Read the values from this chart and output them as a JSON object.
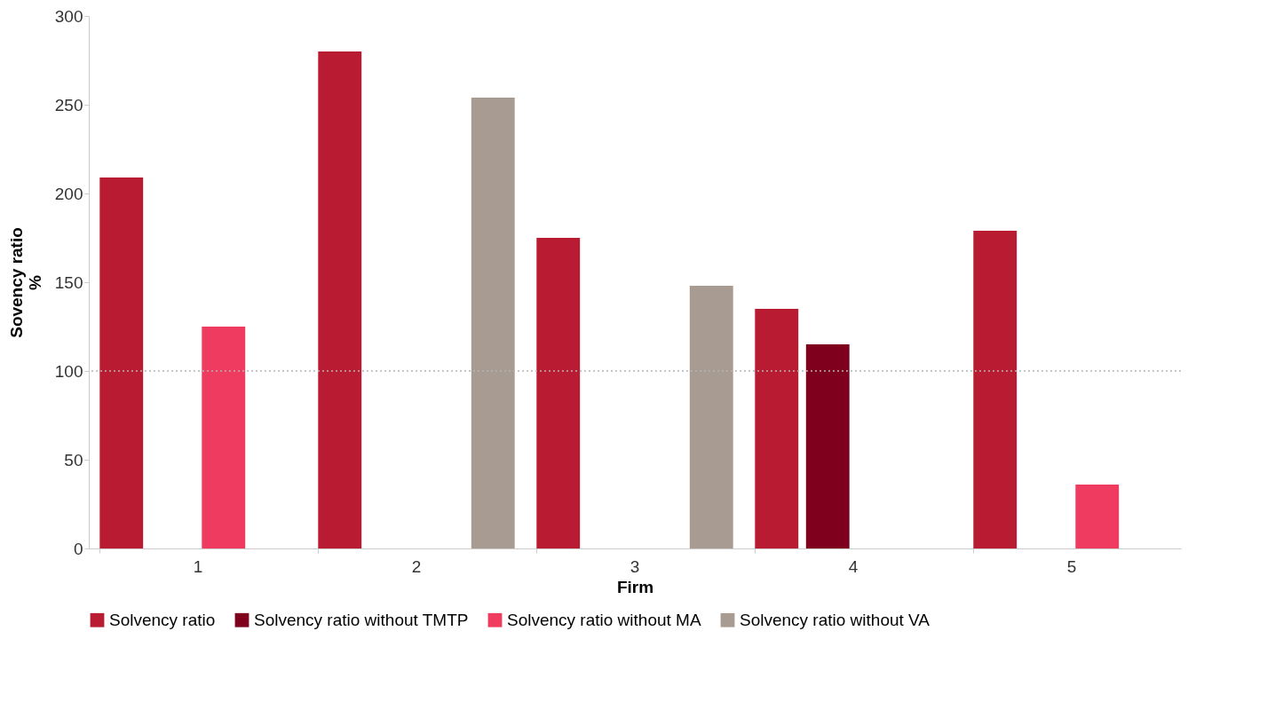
{
  "chart_data": {
    "type": "bar",
    "xlabel": "Firm",
    "ylabel": "Sovency ratio\n%",
    "categories": [
      "1",
      "2",
      "3",
      "4",
      "5"
    ],
    "series": [
      {
        "name": "Solvency ratio",
        "color": "#b91c32",
        "values": [
          209,
          280,
          175,
          135,
          179
        ]
      },
      {
        "name": "Solvency ratio without TMTP",
        "color": "#7f001c",
        "values": [
          null,
          null,
          null,
          115,
          null
        ]
      },
      {
        "name": "Solvency ratio without MA",
        "color": "#ee3b5f",
        "values": [
          125,
          null,
          null,
          null,
          36
        ]
      },
      {
        "name": "Solvency ratio without VA",
        "color": "#a89b91",
        "values": [
          null,
          254,
          148,
          null,
          null
        ]
      }
    ],
    "ylim": [
      0,
      300
    ],
    "yticks": [
      0,
      50,
      100,
      150,
      200,
      250,
      300
    ],
    "ref_lines": [
      {
        "axis": "y",
        "value": 100,
        "color": "#b4b4b4",
        "line_style": "dotted"
      }
    ],
    "grid": false,
    "legend": "bottom"
  }
}
